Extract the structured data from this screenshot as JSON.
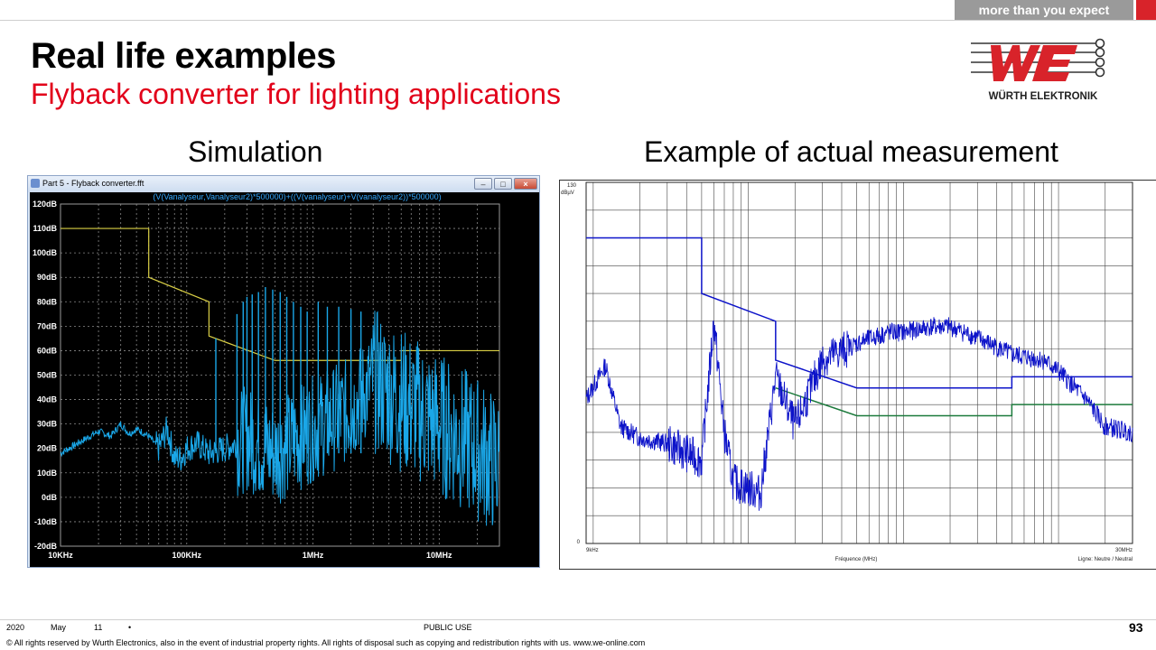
{
  "header": {
    "tagline": "more than you expect"
  },
  "title": "Real life examples",
  "subtitle": "Flyback converter for lighting applications",
  "logo": {
    "text": "WÜRTH ELEKTRONIK"
  },
  "colors": {
    "brand_red": "#d8232a",
    "subtitle_red": "#e2001a",
    "sim_trace": "#1aa7e8",
    "sim_limit": "#d9cf45",
    "meas_blue": "#0d13c9",
    "meas_green": "#1c7a3c"
  },
  "left_caption": "Simulation",
  "right_caption": "Example of actual measurement",
  "sim_window": {
    "title": "Part 5 - Flyback converter.fft",
    "trace_label": "(V(Vanalyseur,Vanalyseur2)*500000)+((V(vanalyseur)+V(vanalyseur2))*500000)",
    "buttons": {
      "minimize": "–",
      "maximize": "□",
      "close": "×"
    }
  },
  "chart_data": [
    {
      "type": "line",
      "title": "(V(Vanalyseur,Vanalyseur2)*500000)+((V(vanalyseur)+V(vanalyseur2))*500000)",
      "xscale": "log",
      "xlim": [
        10000,
        30000000
      ],
      "ylim": [
        -20,
        120
      ],
      "grid": true,
      "ytick_labels": [
        "120dB",
        "110dB",
        "100dB",
        "90dB",
        "80dB",
        "70dB",
        "60dB",
        "50dB",
        "40dB",
        "30dB",
        "20dB",
        "10dB",
        "0dB",
        "-10dB",
        "-20dB"
      ],
      "yticks": [
        120,
        110,
        100,
        90,
        80,
        70,
        60,
        50,
        40,
        30,
        20,
        10,
        0,
        -10,
        -20
      ],
      "xtick_labels": [
        "10KHz",
        "100KHz",
        "1MHz",
        "10MHz"
      ],
      "xticks": [
        10000,
        100000,
        1000000,
        10000000
      ],
      "series": [
        {
          "x": [
            10000,
            50000,
            50000,
            150000,
            150000,
            500000,
            500000,
            5000000,
            5000000,
            30000000
          ],
          "y": [
            110,
            110,
            90,
            80,
            66,
            56,
            56,
            56,
            60,
            60
          ]
        },
        {
          "x": [
            10000,
            20000,
            25000,
            30000,
            35000,
            40000,
            50000,
            60000,
            70000,
            80000,
            90000,
            100000,
            120000,
            150000,
            200000,
            300000,
            500000,
            1000000,
            2000000,
            3000000,
            5000000,
            10000000,
            20000000,
            30000000
          ],
          "y": [
            18,
            27,
            25,
            30,
            26,
            28,
            25,
            20,
            28,
            16,
            16,
            20,
            22,
            18,
            20,
            24,
            18,
            28,
            36,
            48,
            40,
            30,
            20,
            12
          ]
        }
      ]
    },
    {
      "type": "line",
      "xscale": "log",
      "xlim": [
        9000,
        30000000
      ],
      "ylim": [
        0,
        130
      ],
      "grid": true,
      "ylabel": "dBµV",
      "ytick_labels": [
        "130",
        "0"
      ],
      "xtick_labels": [
        "9kHz",
        "30MHz"
      ],
      "xlabel": "Fréquence (MHz)",
      "corner_label": "Ligne: Neutre / Neutral",
      "series": [
        {
          "x": [
            9000,
            50000,
            50000,
            150000,
            150000,
            500000,
            500000,
            5000000,
            5000000,
            30000000
          ],
          "y": [
            110,
            110,
            90,
            80,
            66,
            56,
            56,
            56,
            60,
            60
          ]
        },
        {
          "x": [
            150000,
            500000,
            500000,
            5000000,
            5000000,
            30000000
          ],
          "y": [
            56,
            46,
            46,
            46,
            50,
            50
          ]
        },
        {
          "x": [
            9000,
            12000,
            15000,
            20000,
            30000,
            50000,
            60000,
            70000,
            80000,
            100000,
            120000,
            150000,
            200000,
            300000,
            500000,
            800000,
            1000000,
            1500000,
            2000000,
            3000000,
            5000000,
            8000000,
            10000000,
            15000000,
            20000000,
            30000000
          ],
          "y": [
            52,
            64,
            42,
            38,
            36,
            30,
            80,
            40,
            22,
            20,
            18,
            60,
            42,
            66,
            72,
            76,
            76,
            78,
            78,
            74,
            68,
            66,
            62,
            52,
            42,
            40
          ]
        }
      ]
    }
  ],
  "footer": {
    "year": "2020",
    "month": "May",
    "day": "11",
    "dot": "•",
    "classification": "PUBLIC USE",
    "page": "93",
    "copyright": "© All rights reserved by Wurth Electronics, also in the event of industrial property rights. All rights of disposal such as copying and redistribution rights with us. www.we-online.com"
  }
}
